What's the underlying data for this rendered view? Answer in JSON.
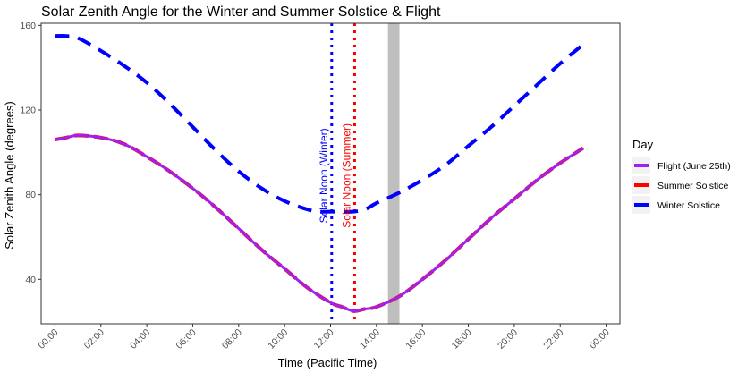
{
  "chart_data": {
    "type": "line",
    "title": "Solar Zenith Angle for the Winter and Summer Solstice & Flight",
    "xlabel": "Time (Pacific Time)",
    "ylabel": "Solar Zenith Angle (degrees)",
    "xlim_hours": [
      -0.6,
      24.6
    ],
    "ylim": [
      19,
      161
    ],
    "x_ticks": [
      {
        "hour": 0,
        "label": "00:00"
      },
      {
        "hour": 2,
        "label": "02:00"
      },
      {
        "hour": 4,
        "label": "04:00"
      },
      {
        "hour": 6,
        "label": "06:00"
      },
      {
        "hour": 8,
        "label": "08:00"
      },
      {
        "hour": 10,
        "label": "10:00"
      },
      {
        "hour": 12,
        "label": "12:00"
      },
      {
        "hour": 14,
        "label": "14:00"
      },
      {
        "hour": 16,
        "label": "16:00"
      },
      {
        "hour": 18,
        "label": "18:00"
      },
      {
        "hour": 20,
        "label": "20:00"
      },
      {
        "hour": 22,
        "label": "22:00"
      },
      {
        "hour": 24,
        "label": "00:00"
      }
    ],
    "y_ticks": [
      40,
      80,
      120,
      160
    ],
    "grid": false,
    "legend": {
      "title": "Day",
      "placement": "right",
      "entries": [
        "Flight (June 25th)",
        "Summer Solstice",
        "Winter Solstice"
      ]
    },
    "series": [
      {
        "name": "Winter Solstice",
        "color": "#0000ff",
        "style": "dashed",
        "x_hours": [
          0,
          0.5,
          1,
          2,
          3,
          4,
          5,
          6,
          7,
          8,
          9,
          10,
          11,
          11.5,
          12,
          12.5,
          13,
          13.5,
          14,
          15,
          16,
          17,
          18,
          19,
          20,
          21,
          22,
          23
        ],
        "y": [
          155,
          155,
          154,
          148,
          141,
          133,
          123,
          112,
          101,
          91,
          83,
          77,
          73,
          72,
          72,
          72,
          72,
          73,
          76,
          81,
          87,
          94,
          103,
          112,
          122,
          132,
          142,
          151
        ]
      },
      {
        "name": "Summer Solstice",
        "color": "#ff0000",
        "style": "solid",
        "x_hours": [
          0,
          0.5,
          1,
          2,
          3,
          4,
          5,
          6,
          7,
          8,
          9,
          10,
          11,
          12,
          12.5,
          13,
          13.5,
          14,
          15,
          16,
          17,
          18,
          19,
          20,
          21,
          22,
          23
        ],
        "y": [
          106,
          107,
          108,
          107,
          104,
          98,
          91,
          83,
          74,
          64,
          54,
          45,
          36,
          29,
          27,
          25,
          26,
          27,
          32,
          40,
          49,
          59,
          69,
          78,
          87,
          95,
          102
        ]
      },
      {
        "name": "Flight (June 25th)",
        "color": "#a020f0",
        "style": "solid",
        "x_hours": [
          0,
          0.5,
          1,
          2,
          3,
          4,
          5,
          6,
          7,
          8,
          9,
          10,
          11,
          12,
          12.5,
          13,
          13.5,
          14,
          15,
          16,
          17,
          18,
          19,
          20,
          21,
          22,
          23
        ],
        "y": [
          106,
          107,
          108,
          107,
          104,
          98,
          91,
          83,
          74,
          64,
          54,
          45,
          36,
          29,
          27,
          25,
          26,
          27,
          32,
          40,
          49,
          59,
          69,
          78,
          87,
          95,
          102
        ]
      }
    ],
    "vlines": [
      {
        "label": "Solar Noon (Winter)",
        "x_hours": 12.05,
        "color": "#0000ff",
        "style": "dotted"
      },
      {
        "label": "Solar Noon (Summer)",
        "x_hours": 13.05,
        "color": "#ff0000",
        "style": "dotted"
      }
    ],
    "shaded_band": {
      "x_hours_from": 14.5,
      "x_hours_to": 15.0,
      "color": "#bebebe"
    }
  }
}
